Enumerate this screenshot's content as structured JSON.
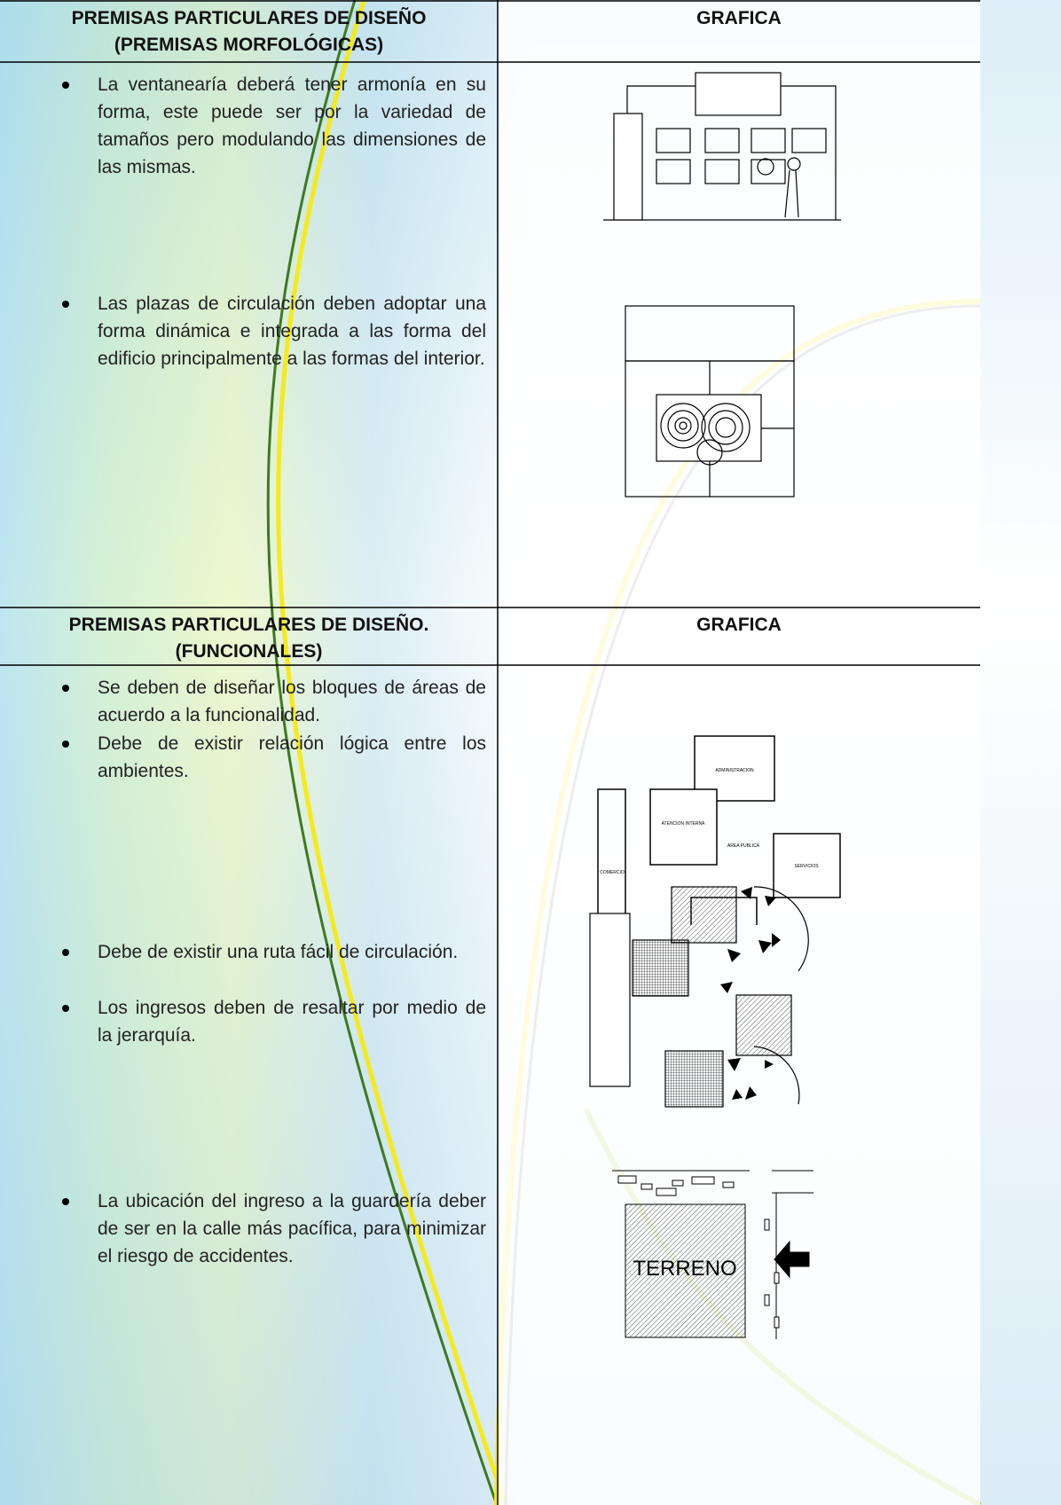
{
  "sections": [
    {
      "header": {
        "title_lines": [
          "PREMISAS PARTICULARES DE DISEÑO",
          "(PREMISAS MORFOLÓGICAS)"
        ],
        "graphic": "GRAFICA"
      },
      "items": [
        "La ventanearía deberá tener armonía en su forma, este puede ser por la variedad de tamaños pero modulando las dimensiones de las mismas.",
        "Las plazas de circulación deben adoptar una forma dinámica e integrada a las forma del edificio principalmente a las formas del interior."
      ]
    },
    {
      "header": {
        "title_lines": [
          "PREMISAS PARTICULARES DE DISEÑO.",
          "(FUNCIONALES)"
        ],
        "graphic": "GRAFICA"
      },
      "items": [
        "Se deben de diseñar los bloques de áreas de acuerdo a la funcionalidad.",
        "Debe de existir relación lógica entre los ambientes.",
        "Debe de existir una ruta fácil de circulación.",
        "Los ingresos deben de resaltar por medio de la jerarquía.",
        "La ubicación del ingreso a la guardería deber de ser en la calle más pacífica, para minimizar el riesgo de accidentes."
      ]
    }
  ],
  "diagram_labels": {
    "administracion": "ADMINISTRACION",
    "atencion_interna": "ATENCION INTERNA",
    "area_publica": "AREA PUBLICA",
    "servicios": "SERVICIOS",
    "comercio": "COMERCIO",
    "terreno": "TERRENO"
  }
}
